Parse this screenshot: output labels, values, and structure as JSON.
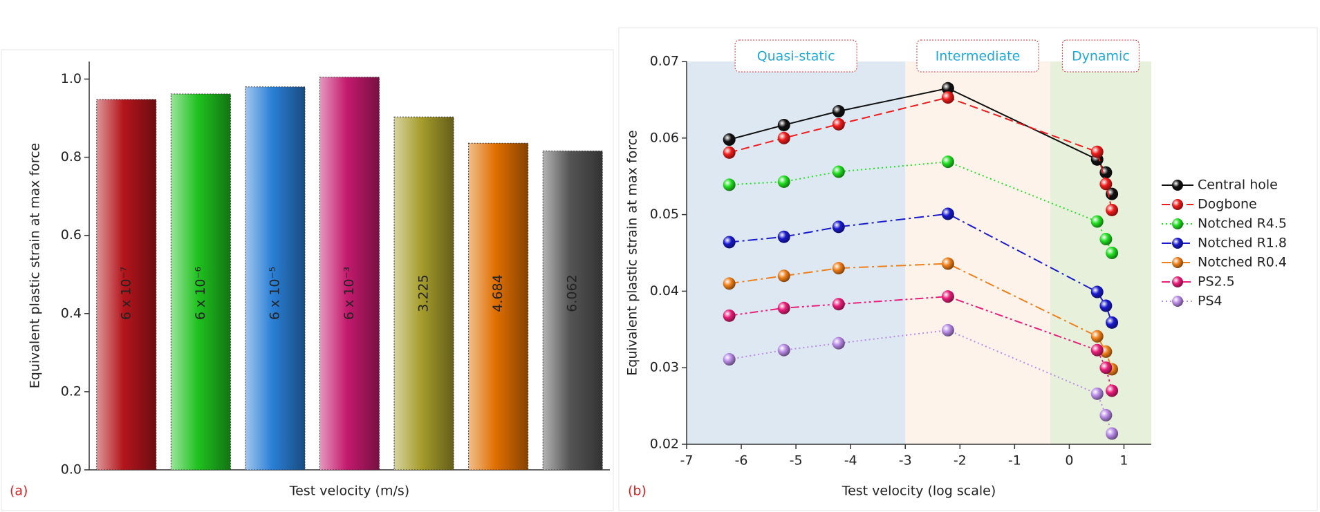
{
  "chart_data": [
    {
      "type": "bar",
      "label": "(a)",
      "x_label": "Test velocity (m/s)",
      "y_label": "Equivalent plastic strain at max force",
      "categories": [
        "6 x 10⁻⁷",
        "6 x 10⁻⁶",
        "6 x 10⁻⁵",
        "6 x 10⁻³",
        "3.225",
        "4.684",
        "6.062"
      ],
      "values": [
        0.948,
        0.962,
        0.98,
        1.005,
        0.903,
        0.836,
        0.816
      ],
      "colors": [
        "#b3151c",
        "#1fc21f",
        "#2a7fd6",
        "#c41a6e",
        "#a69d2c",
        "#e06f00",
        "#555555"
      ],
      "ylim": [
        0,
        1.045
      ],
      "yticks": [
        {
          "value": 0,
          "label": "0.0"
        },
        0.2,
        0.4,
        0.6,
        0.8,
        {
          "value": 1,
          "label": "1.0"
        }
      ]
    },
    {
      "type": "line",
      "label": "(b)",
      "x_label": "Test velocity (log scale)",
      "y_label": "Equivalent plastic strain at max force",
      "x": [
        -6.22,
        -5.22,
        -4.22,
        -2.22,
        0.51,
        0.67,
        0.78
      ],
      "xlim": [
        -7,
        1.5
      ],
      "xticks": [
        -7,
        -6,
        -5,
        -4,
        -3,
        -2,
        -1,
        0,
        1
      ],
      "ylim": [
        0.02,
        0.07
      ],
      "yticks": [
        0.02,
        0.03,
        0.04,
        0.05,
        0.06,
        0.07
      ],
      "regions": [
        {
          "name": "Quasi-static",
          "x": [
            -7,
            -3
          ],
          "color": "#dde8f3"
        },
        {
          "name": "Intermediate",
          "x": [
            -3,
            -0.35
          ],
          "color": "#fdf3ea"
        },
        {
          "name": "Dynamic",
          "x": [
            -0.35,
            1.5
          ],
          "color": "#e6f0da"
        }
      ],
      "legend": "right",
      "series": [
        {
          "name": "Central hole",
          "color": "#111111",
          "style": "solid",
          "values": [
            0.0598,
            0.0617,
            0.0635,
            0.0665,
            0.0572,
            0.0555,
            0.0527
          ]
        },
        {
          "name": "Dogbone",
          "color": "#ee1c1c",
          "style": "dash",
          "values": [
            0.0581,
            0.06,
            0.0618,
            0.0653,
            0.0582,
            0.054,
            0.0506
          ]
        },
        {
          "name": "Notched R4.5",
          "color": "#22dd22",
          "style": "dot",
          "values": [
            0.0539,
            0.0543,
            0.0556,
            0.0569,
            0.0491,
            0.0468,
            0.045
          ]
        },
        {
          "name": "Notched R1.8",
          "color": "#1a1acc",
          "style": "dashdot",
          "values": [
            0.0464,
            0.0471,
            0.0484,
            0.0501,
            0.0399,
            0.0381,
            0.0359
          ]
        },
        {
          "name": "Notched R0.4",
          "color": "#ef7f1a",
          "style": "dashdot",
          "values": [
            0.041,
            0.042,
            0.043,
            0.0436,
            0.0341,
            0.0321,
            0.0298
          ]
        },
        {
          "name": "PS2.5",
          "color": "#e91e7a",
          "style": "dashdotdot",
          "values": [
            0.0368,
            0.0378,
            0.0383,
            0.0393,
            0.0323,
            0.03,
            0.027
          ]
        },
        {
          "name": "PS4",
          "color": "#b88ae6",
          "style": "dot",
          "values": [
            0.0311,
            0.0323,
            0.0332,
            0.0349,
            0.0266,
            0.0238,
            0.0214
          ]
        }
      ]
    }
  ]
}
